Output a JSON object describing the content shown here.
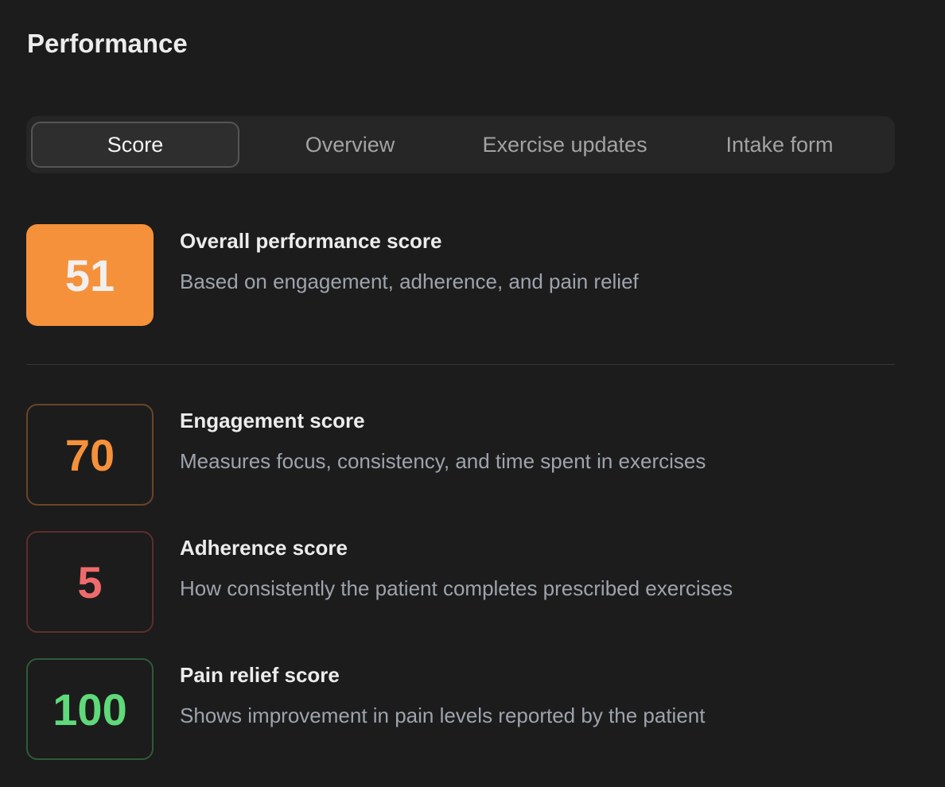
{
  "header": {
    "title": "Performance"
  },
  "tabs": [
    {
      "label": "Score",
      "active": true
    },
    {
      "label": "Overview"
    },
    {
      "label": "Exercise updates"
    },
    {
      "label": "Intake form"
    }
  ],
  "overall": {
    "value": "51",
    "title": "Overall performance score",
    "description": "Based on engagement, adherence, and pain relief",
    "color": "#f5913a"
  },
  "scores": [
    {
      "value": "70",
      "title": "Engagement score",
      "description": "Measures focus, consistency, and time spent in exercises",
      "color": "#f5913a",
      "border": "#6b4428"
    },
    {
      "value": "5",
      "title": "Adherence score",
      "description": "How consistently the patient completes prescribed exercises",
      "color": "#ef6b6b",
      "border": "#5e2e2e"
    },
    {
      "value": "100",
      "title": "Pain relief score",
      "description": "Shows improvement in pain levels reported by the patient",
      "color": "#5fd97a",
      "border": "#2f5a38"
    }
  ]
}
